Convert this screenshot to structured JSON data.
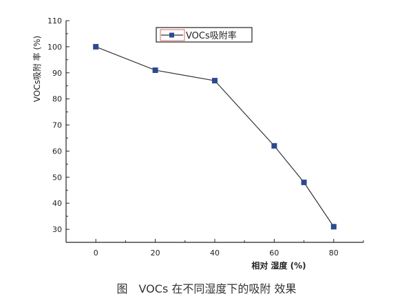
{
  "chart_data": {
    "type": "line",
    "title": "",
    "caption": "图　VOCs 在不同湿度下的吸附 效果",
    "xlabel": "相对 湿度 (%)",
    "ylabel": "VOCs吸附 率 (%)",
    "xlim": [
      -10,
      90
    ],
    "ylim": [
      25,
      110
    ],
    "xticks": [
      0,
      20,
      40,
      60,
      80
    ],
    "yticks": [
      30,
      40,
      50,
      60,
      70,
      80,
      90,
      100,
      110
    ],
    "grid": false,
    "legend_placement": "top-center",
    "series": [
      {
        "name": "VOCs吸附率",
        "color": "#2b4a8f",
        "marker": "square",
        "x": [
          0,
          20,
          40,
          60,
          70,
          80
        ],
        "y": [
          100,
          91,
          87,
          62,
          48,
          31
        ]
      }
    ]
  }
}
